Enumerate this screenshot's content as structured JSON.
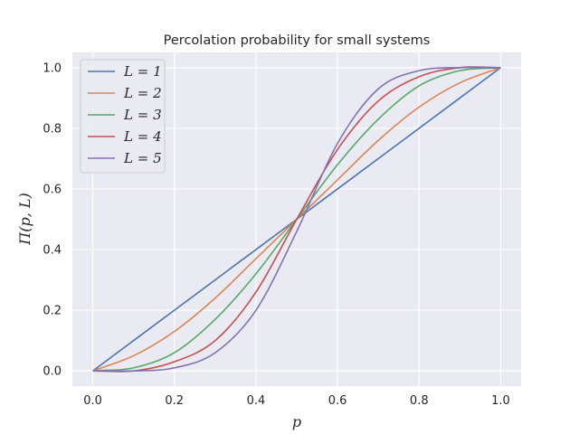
{
  "chart_data": {
    "type": "line",
    "title": "Percolation probability for small systems",
    "xlabel": "p",
    "ylabel": "Π(p, L)",
    "xlim": [
      -0.05,
      1.05
    ],
    "ylim": [
      -0.05,
      1.05
    ],
    "xticks": [
      0.0,
      0.2,
      0.4,
      0.6,
      0.8,
      1.0
    ],
    "yticks": [
      0.0,
      0.2,
      0.4,
      0.6,
      0.8,
      1.0
    ],
    "xtick_labels": [
      "0.0",
      "0.2",
      "0.4",
      "0.6",
      "0.8",
      "1.0"
    ],
    "ytick_labels": [
      "0.0",
      "0.2",
      "0.4",
      "0.6",
      "0.8",
      "1.0"
    ],
    "grid": true,
    "legend_position": "top-left",
    "background_color": "#eaeaf2",
    "grid_color": "#ffffff",
    "x": [
      0.0,
      0.1,
      0.2,
      0.3,
      0.4,
      0.5,
      0.6,
      0.7,
      0.8,
      0.9,
      1.0
    ],
    "series": [
      {
        "name": "L = 1",
        "color": "#4c72b0",
        "values": [
          0.0,
          0.1,
          0.2,
          0.3,
          0.4,
          0.5,
          0.6,
          0.7,
          0.8,
          0.9,
          1.0
        ]
      },
      {
        "name": "L = 2",
        "color": "#dd8452",
        "values": [
          0.0,
          0.05,
          0.13,
          0.24,
          0.37,
          0.5,
          0.63,
          0.76,
          0.87,
          0.95,
          1.0
        ]
      },
      {
        "name": "L = 3",
        "color": "#55a868",
        "values": [
          0.0,
          0.01,
          0.06,
          0.17,
          0.32,
          0.5,
          0.68,
          0.83,
          0.94,
          0.99,
          1.0
        ]
      },
      {
        "name": "L = 4",
        "color": "#c44e52",
        "values": [
          0.0,
          0.0,
          0.03,
          0.1,
          0.26,
          0.5,
          0.73,
          0.89,
          0.97,
          1.0,
          1.0
        ]
      },
      {
        "name": "L = 5",
        "color": "#8172b3",
        "values": [
          0.0,
          0.0,
          0.01,
          0.06,
          0.2,
          0.46,
          0.75,
          0.93,
          0.99,
          1.0,
          1.0
        ]
      }
    ]
  }
}
